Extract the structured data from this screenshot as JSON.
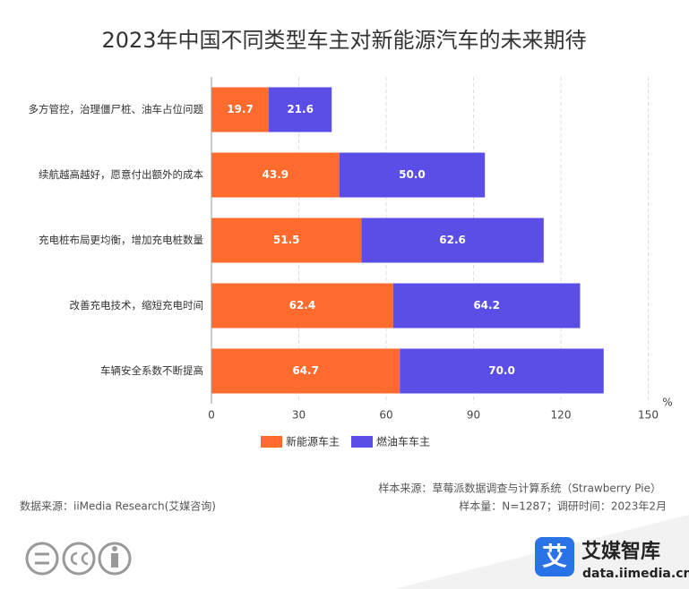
{
  "chart_data": {
    "type": "stacked_barh",
    "title": "2023年中国不同类型车主对新能源汽车的未来期待",
    "categories": [
      "多方管控，治理僵尸桩、油车占位问题",
      "续航越高越好，愿意付出额外的成本",
      "充电桩布局更均衡，增加充电桩数量",
      "改善充电技术，缩短充电时间",
      "车辆安全系数不断提高"
    ],
    "series": [
      {
        "name": "新能源车主",
        "color": "#ff6b2c",
        "values": [
          19.7,
          43.9,
          51.5,
          62.4,
          64.7
        ],
        "value_labels": [
          "19.7",
          "43.9",
          "51.5",
          "62.4",
          "64.7"
        ]
      },
      {
        "name": "燃油车车主",
        "color": "#5a4ee6",
        "values": [
          21.6,
          50.0,
          62.6,
          64.2,
          70.0
        ],
        "value_labels": [
          "21.6",
          "50.0",
          "62.6",
          "64.2",
          "70.0"
        ]
      }
    ],
    "xlim": [
      0,
      150
    ],
    "xticks": [
      0,
      30,
      60,
      90,
      120,
      150
    ],
    "x_unit": "%",
    "grid": true,
    "source": "样本来源：草莓派数据调查与计算系统（Strawberry Pie）",
    "sample": "样本量：N=1287；调研时间：2023年2月",
    "data_source": "数据来源：iiMedia Research(艾媒咨询)",
    "brand_icon": "艾",
    "brand_name": "艾媒智库",
    "brand_url": "data.iimedia.cn"
  }
}
